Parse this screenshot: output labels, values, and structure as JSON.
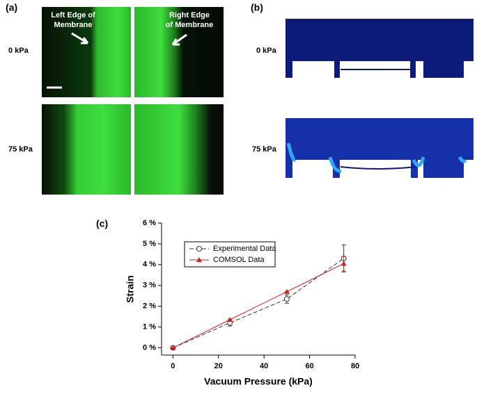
{
  "figure": {
    "panel_a": {
      "label": "(a)",
      "rows": [
        "0 kPa",
        "75 kPa"
      ],
      "annotations": [
        {
          "lines": [
            "Left Edge of",
            "Membrane"
          ]
        },
        {
          "lines": [
            "Right Edge",
            "of Membrane"
          ]
        }
      ]
    },
    "panel_b": {
      "label": "(b)",
      "rows": [
        "0 kPa",
        "75 kPa"
      ]
    },
    "panel_c": {
      "label": "(c)"
    }
  },
  "chart_data": {
    "type": "line",
    "x_label": "Vacuum Pressure (kPa)",
    "y_label": "Strain",
    "x": [
      0,
      25,
      50,
      75
    ],
    "series": [
      {
        "name": "Experimental Data",
        "color": "#333333",
        "values": [
          0,
          1.2,
          2.35,
          4.3
        ],
        "errors": [
          0,
          0.15,
          0.2,
          0.65
        ],
        "marker": "circle",
        "dash": true
      },
      {
        "name": "COMSOL Data",
        "color": "#cc2222",
        "values": [
          0,
          1.35,
          2.7,
          4.05
        ],
        "errors": [
          0,
          0,
          0,
          0.35
        ],
        "marker": "triangle",
        "dash": false
      }
    ],
    "xlim": [
      -5,
      80
    ],
    "xticks": [
      0,
      20,
      40,
      60,
      80
    ],
    "ylim": [
      -0.35,
      6
    ],
    "yticks": [
      {
        "value": 0,
        "label": "0 %"
      },
      {
        "value": 1,
        "label": "1 %"
      },
      {
        "value": 2,
        "label": "2 %"
      },
      {
        "value": 3,
        "label": "3 %"
      },
      {
        "value": 4,
        "label": "4 %"
      },
      {
        "value": 5,
        "label": "5 %"
      },
      {
        "value": 6,
        "label": "6 %"
      }
    ],
    "legend": "upper-left"
  }
}
